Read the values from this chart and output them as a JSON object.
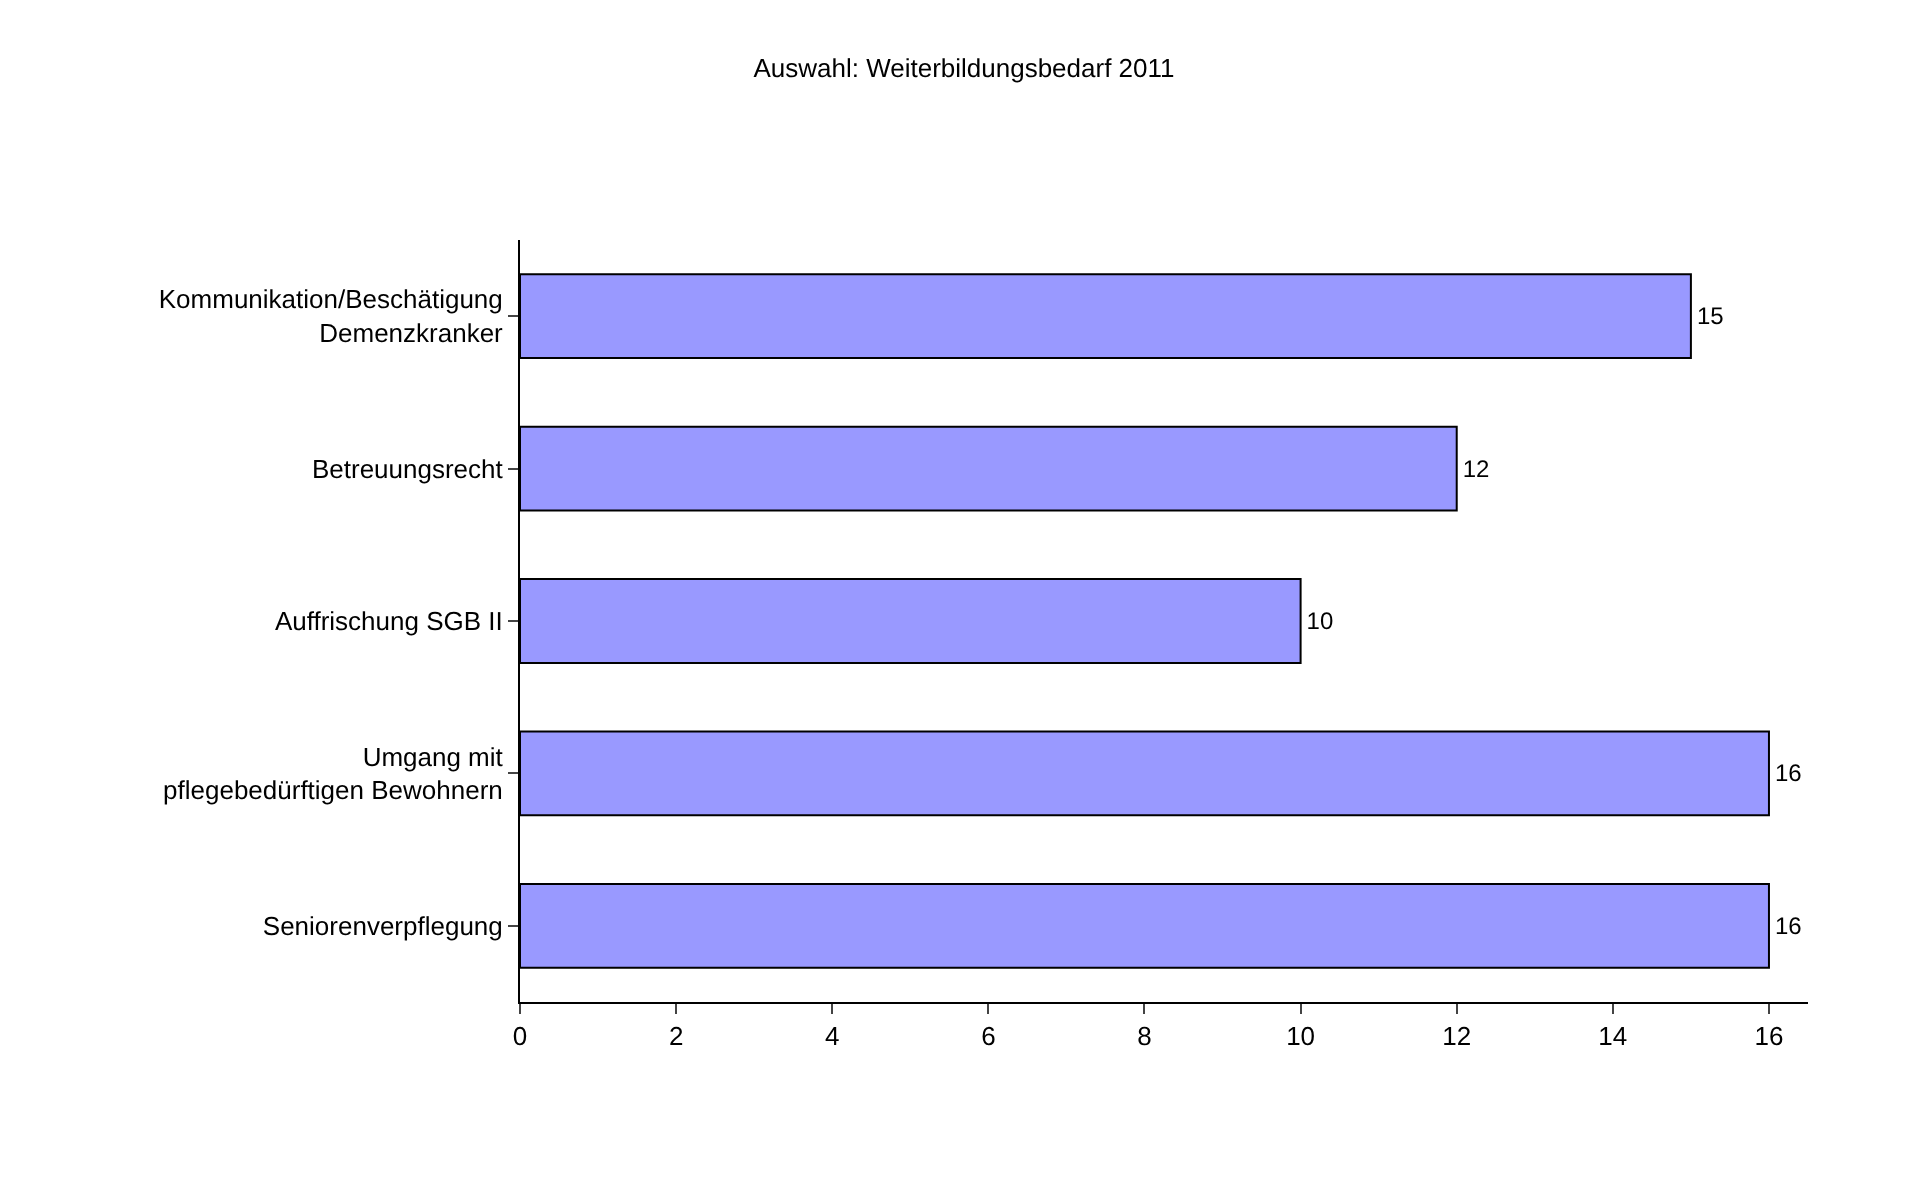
{
  "chart_data": {
    "type": "bar",
    "orientation": "horizontal",
    "title": "Auswahl: Weiterbildungsbedarf 2011",
    "categories": [
      "Kommunikation/Beschätigung\nDemenzkranker",
      "Betreuungsrecht",
      "Auffrischung SGB II",
      "Umgang mit\npflegebedürftigen Bewohnern",
      "Seniorenverpflegung"
    ],
    "values": [
      15,
      12,
      10,
      16,
      16
    ],
    "color": "#9999ff",
    "xlim": [
      0,
      16.5
    ],
    "xticks": [
      0,
      2,
      4,
      6,
      8,
      10,
      12,
      14,
      16
    ],
    "data_labels": true
  }
}
